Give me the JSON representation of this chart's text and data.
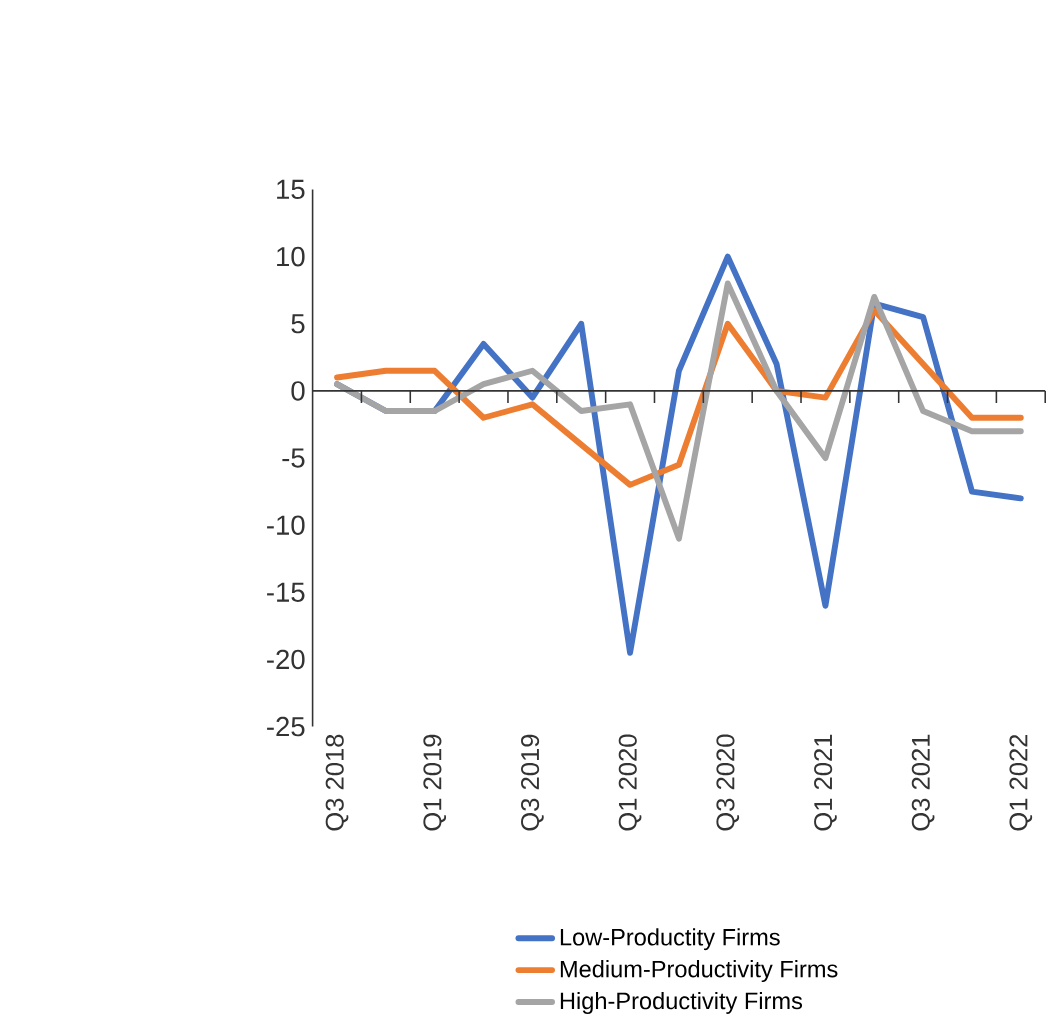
{
  "chart_data": {
    "type": "line",
    "categories": [
      "Q3 2018",
      null,
      "Q1 2019",
      null,
      "Q3 2019",
      null,
      "Q1 2020",
      null,
      "Q3 2020",
      null,
      "Q1 2021",
      null,
      "Q3 2021",
      null,
      "Q1 2022"
    ],
    "series": [
      {
        "name": "Low-Productity Firms",
        "color": "#4472c4",
        "values": [
          0.5,
          -1.5,
          -1.5,
          3.5,
          -0.5,
          5,
          -19.5,
          1.5,
          10,
          2,
          -16,
          6.5,
          5.5,
          -7.5,
          -8
        ]
      },
      {
        "name": "Medium-Productivity Firms",
        "color": "#ed7d31",
        "values": [
          1,
          1.5,
          1.5,
          -2,
          -1,
          -4,
          -7,
          -5.5,
          5,
          0,
          -0.5,
          6,
          2,
          -2,
          -2
        ]
      },
      {
        "name": "High-Productivity Firms",
        "color": "#a5a5a5",
        "values": [
          0.5,
          -1.5,
          -1.5,
          0.5,
          1.5,
          -1.5,
          -1,
          -11,
          8,
          0,
          -5,
          7,
          -1.5,
          -3,
          -3
        ]
      }
    ],
    "ylim": [
      -25,
      15
    ],
    "yticks": [
      15,
      10,
      5,
      0,
      -5,
      -10,
      -15,
      -20,
      -25
    ],
    "legend": "bottom",
    "marker": "none"
  }
}
